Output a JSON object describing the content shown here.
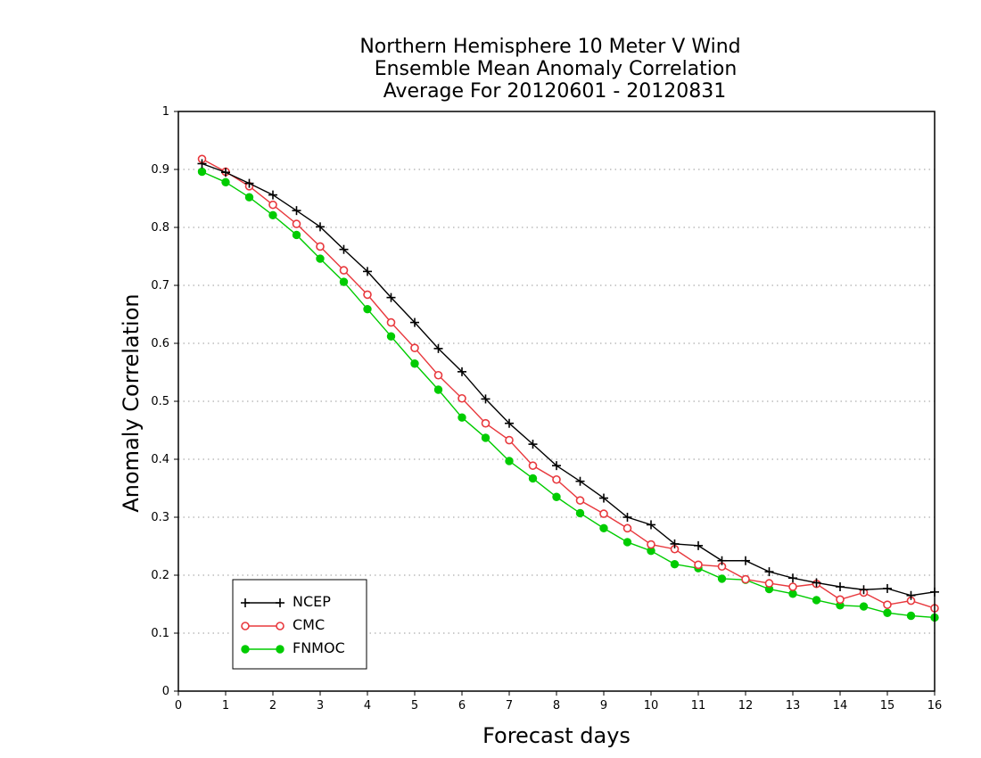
{
  "chart_data": {
    "type": "line",
    "title": [
      "Northern Hemisphere 10 Meter V Wind",
      "Ensemble Mean Anomaly Correlation",
      "Average For 20120601 - 20120831"
    ],
    "xlabel": "Forecast days",
    "ylabel": "Anomaly Correlation",
    "xlim": [
      0,
      16
    ],
    "ylim": [
      0,
      1
    ],
    "x_ticks": [
      "0",
      "1",
      "2",
      "3",
      "4",
      "5",
      "6",
      "7",
      "8",
      "9",
      "10",
      "11",
      "12",
      "13",
      "14",
      "15",
      "16"
    ],
    "y_ticks": [
      "0",
      "0.1",
      "0.2",
      "0.3",
      "0.4",
      "0.5",
      "0.6",
      "0.7",
      "0.8",
      "0.9",
      "1"
    ],
    "grid": "horizontal dotted",
    "legend_position": "bottom-left",
    "x": [
      0.5,
      1,
      1.5,
      2,
      2.5,
      3,
      3.5,
      4,
      4.5,
      5,
      5.5,
      6,
      6.5,
      7,
      7.5,
      8,
      8.5,
      9,
      9.5,
      10,
      10.5,
      11,
      11.5,
      12,
      12.5,
      13,
      13.5,
      14,
      14.5,
      15,
      15.5,
      16
    ],
    "series": [
      {
        "name": "NCEP",
        "color": "#000000",
        "marker": "plus",
        "values": [
          0.91,
          0.895,
          0.876,
          0.856,
          0.829,
          0.801,
          0.762,
          0.724,
          0.679,
          0.636,
          0.591,
          0.551,
          0.504,
          0.462,
          0.426,
          0.389,
          0.362,
          0.333,
          0.3,
          0.287,
          0.254,
          0.251,
          0.225,
          0.225,
          0.206,
          0.195,
          0.187,
          0.18,
          0.175,
          0.177,
          0.165,
          0.171
        ]
      },
      {
        "name": "CMC",
        "color": "#e8383d",
        "marker": "open-circle",
        "values": [
          0.918,
          0.896,
          0.871,
          0.839,
          0.806,
          0.767,
          0.726,
          0.684,
          0.636,
          0.592,
          0.545,
          0.505,
          0.462,
          0.433,
          0.389,
          0.365,
          0.329,
          0.306,
          0.281,
          0.253,
          0.245,
          0.218,
          0.215,
          0.193,
          0.186,
          0.18,
          0.185,
          0.158,
          0.17,
          0.149,
          0.156,
          0.143
        ]
      },
      {
        "name": "FNMOC",
        "color": "#00cc00",
        "marker": "filled-circle",
        "values": [
          0.896,
          0.878,
          0.852,
          0.821,
          0.787,
          0.746,
          0.706,
          0.659,
          0.612,
          0.565,
          0.52,
          0.472,
          0.437,
          0.397,
          0.367,
          0.335,
          0.307,
          0.281,
          0.257,
          0.242,
          0.219,
          0.212,
          0.194,
          0.192,
          0.176,
          0.168,
          0.157,
          0.148,
          0.146,
          0.135,
          0.13,
          0.127
        ]
      }
    ]
  }
}
